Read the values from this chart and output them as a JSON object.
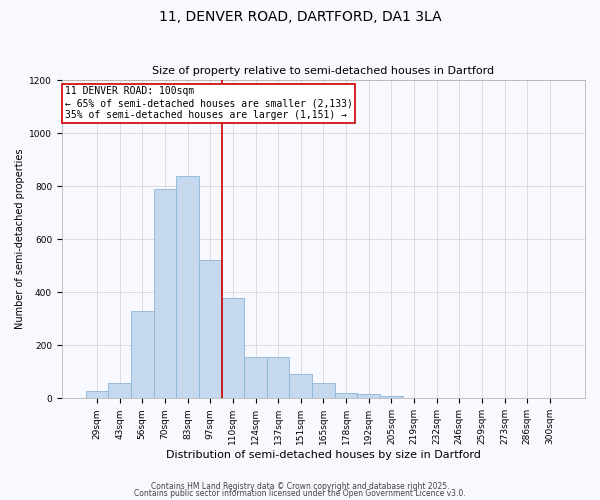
{
  "title": "11, DENVER ROAD, DARTFORD, DA1 3LA",
  "subtitle": "Size of property relative to semi-detached houses in Dartford",
  "xlabel": "Distribution of semi-detached houses by size in Dartford",
  "ylabel": "Number of semi-detached properties",
  "categories": [
    "29sqm",
    "43sqm",
    "56sqm",
    "70sqm",
    "83sqm",
    "97sqm",
    "110sqm",
    "124sqm",
    "137sqm",
    "151sqm",
    "165sqm",
    "178sqm",
    "192sqm",
    "205sqm",
    "219sqm",
    "232sqm",
    "246sqm",
    "259sqm",
    "273sqm",
    "286sqm",
    "300sqm"
  ],
  "values": [
    28,
    58,
    330,
    790,
    840,
    520,
    380,
    155,
    155,
    90,
    58,
    20,
    18,
    10,
    0,
    0,
    0,
    0,
    0,
    0,
    0
  ],
  "bar_color": "#c5d8ee",
  "bar_edge_color": "#8ab4d8",
  "property_line_color": "#cc0000",
  "annotation_text": "11 DENVER ROAD: 100sqm\n← 65% of semi-detached houses are smaller (2,133)\n35% of semi-detached houses are larger (1,151) →",
  "annotation_box_color": "#ffffff",
  "annotation_box_edge_color": "#cc0000",
  "ylim": [
    0,
    1200
  ],
  "yticks": [
    0,
    200,
    400,
    600,
    800,
    1000,
    1200
  ],
  "footer1": "Contains HM Land Registry data © Crown copyright and database right 2025.",
  "footer2": "Contains public sector information licensed under the Open Government Licence v3.0.",
  "bg_color": "#f8f8ff",
  "grid_color": "#d0d0d0",
  "title_fontsize": 10,
  "subtitle_fontsize": 8,
  "xlabel_fontsize": 8,
  "ylabel_fontsize": 7,
  "tick_fontsize": 6.5,
  "annotation_fontsize": 7,
  "footer_fontsize": 5.5
}
